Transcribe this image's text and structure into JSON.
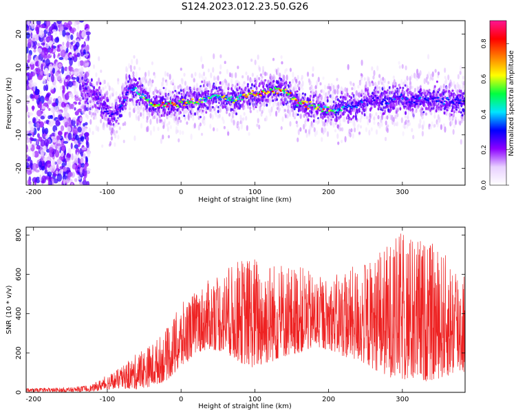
{
  "title": "S124.2023.012.23.50.G26",
  "chart_data": [
    {
      "type": "heatmap",
      "xlabel": "Height of straight line (km)",
      "ylabel": "Frequency (Hz)",
      "xlim": [
        -210,
        385
      ],
      "ylim": [
        -25,
        24
      ],
      "xticks": [
        -200,
        -100,
        0,
        100,
        200,
        300
      ],
      "yticks": [
        -20,
        -10,
        0,
        10,
        20
      ],
      "grid": false,
      "colorbar": {
        "label": "Normalized spectral amplitude",
        "range": [
          0,
          0.93
        ],
        "ticks": [
          "0.0",
          "0.2",
          "0.4",
          "0.6",
          "0.8"
        ],
        "colormap": [
          "#ffffff",
          "#e8d0ff",
          "#8c00ff",
          "#0000ff",
          "#00e5ff",
          "#00ff40",
          "#ffff00",
          "#ff8000",
          "#ff0000",
          "#ff1493"
        ]
      },
      "ridge": {
        "x": [
          -130,
          -120,
          -110,
          -100,
          -90,
          -80,
          -70,
          -60,
          -50,
          -40,
          -30,
          -20,
          -10,
          0,
          10,
          20,
          30,
          40,
          50,
          60,
          70,
          80,
          90,
          100,
          110,
          120,
          130,
          140,
          150,
          160,
          170,
          180,
          190,
          200,
          210,
          220,
          230,
          240,
          250,
          260,
          270,
          280,
          290,
          300,
          310,
          320,
          330,
          340,
          350,
          360,
          370,
          380
        ],
        "y": [
          3,
          2,
          0,
          -3,
          -4,
          -1,
          4,
          3,
          1,
          -1,
          -1,
          -1,
          -1,
          -0.5,
          0,
          0,
          0.5,
          1,
          1.5,
          1,
          0.5,
          1,
          2,
          2,
          2.5,
          3,
          3.5,
          3,
          1,
          -0.5,
          -1,
          -1.5,
          -2,
          -2.5,
          -3,
          -2,
          -2,
          -1,
          0,
          1,
          0,
          0,
          1,
          1,
          0,
          0.5,
          0,
          1,
          0.5,
          0,
          0,
          0
        ],
        "peak_amplitude": [
          0.2,
          0.2,
          0.25,
          0.3,
          0.3,
          0.35,
          0.4,
          0.5,
          0.65,
          0.85,
          0.9,
          0.9,
          0.85,
          0.85,
          0.75,
          0.7,
          0.6,
          0.6,
          0.65,
          0.65,
          0.65,
          0.7,
          0.75,
          0.8,
          0.85,
          0.9,
          0.85,
          0.8,
          0.75,
          0.75,
          0.8,
          0.8,
          0.75,
          0.7,
          0.55,
          0.45,
          0.4,
          0.35,
          0.35,
          0.35,
          0.35,
          0.35,
          0.35,
          0.35,
          0.35,
          0.35,
          0.35,
          0.35,
          0.35,
          0.35,
          0.35,
          0.35
        ]
      }
    },
    {
      "type": "line",
      "xlabel": "Height of straight line (km)",
      "ylabel": "SNR (10 * v/v)",
      "xlim": [
        -210,
        385
      ],
      "ylim": [
        0,
        840
      ],
      "xticks": [
        -200,
        -100,
        0,
        100,
        200,
        300
      ],
      "yticks": [
        0,
        200,
        400,
        600,
        800
      ],
      "grid": false,
      "series_color": "#ee2222",
      "envelope": {
        "x": [
          -210,
          -150,
          -120,
          -100,
          -80,
          -60,
          -40,
          -20,
          0,
          20,
          40,
          60,
          80,
          100,
          120,
          140,
          160,
          180,
          200,
          220,
          240,
          260,
          280,
          300,
          320,
          340,
          360,
          385
        ],
        "low": [
          2,
          2,
          5,
          15,
          20,
          15,
          30,
          60,
          120,
          200,
          220,
          200,
          150,
          120,
          150,
          180,
          200,
          220,
          220,
          180,
          160,
          120,
          80,
          60,
          50,
          60,
          80,
          100
        ],
        "high": [
          20,
          25,
          40,
          90,
          130,
          200,
          250,
          320,
          450,
          520,
          580,
          620,
          680,
          700,
          680,
          640,
          650,
          600,
          580,
          620,
          650,
          680,
          760,
          820,
          800,
          760,
          700,
          650
        ]
      }
    }
  ]
}
